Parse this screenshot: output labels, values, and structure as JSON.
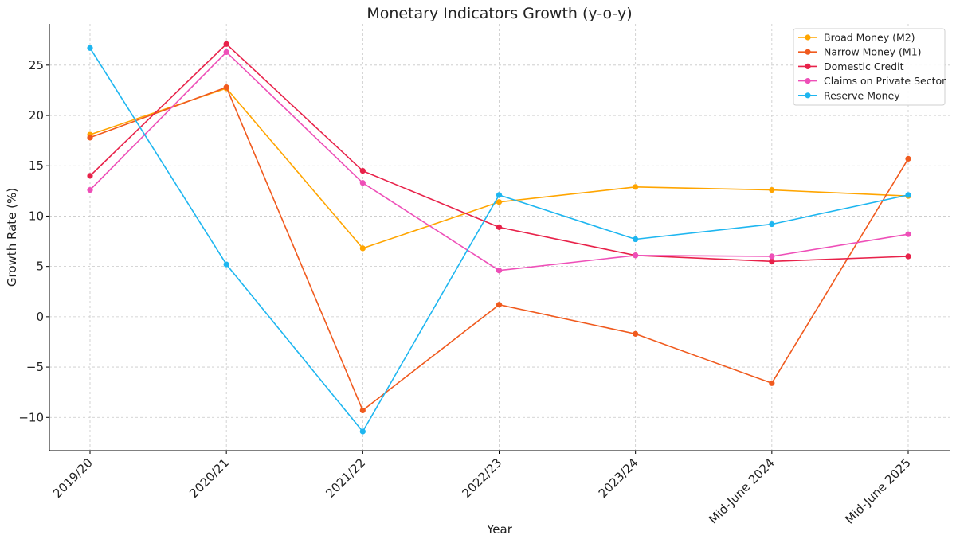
{
  "chart_data": {
    "type": "line",
    "title": "Monetary Indicators Growth (y-o-y)",
    "xlabel": "Year",
    "ylabel": "Growth Rate (%)",
    "categories": [
      "2019/20",
      "2020/21",
      "2021/22",
      "2022/23",
      "2023/24",
      "Mid-June 2024",
      "Mid-June 2025"
    ],
    "yticks": [
      -10,
      -5,
      0,
      5,
      10,
      15,
      20,
      25
    ],
    "ytick_labels": [
      "−10",
      "−5",
      "0",
      "5",
      "10",
      "15",
      "20",
      "25"
    ],
    "ylim": [
      -13.3,
      29.1
    ],
    "grid": true,
    "legend_position": "top-right",
    "series": [
      {
        "name": "Broad Money (M2)",
        "color": "#FFA500",
        "values": [
          18.1,
          22.7,
          6.8,
          11.4,
          12.9,
          12.6,
          12.0
        ]
      },
      {
        "name": "Narrow Money (M1)",
        "color": "#F05A1E",
        "values": [
          17.8,
          22.8,
          -9.3,
          1.2,
          -1.7,
          -6.6,
          15.7
        ]
      },
      {
        "name": "Domestic Credit",
        "color": "#E8224A",
        "values": [
          14.0,
          27.1,
          14.5,
          8.9,
          6.1,
          5.5,
          6.0
        ]
      },
      {
        "name": "Claims on Private Sector",
        "color": "#EE4FB8",
        "values": [
          12.6,
          26.3,
          13.3,
          4.6,
          6.1,
          6.0,
          8.2
        ]
      },
      {
        "name": "Reserve Money",
        "color": "#1EB6F0",
        "values": [
          26.7,
          5.2,
          -11.4,
          12.1,
          7.7,
          9.2,
          12.1
        ]
      }
    ]
  }
}
